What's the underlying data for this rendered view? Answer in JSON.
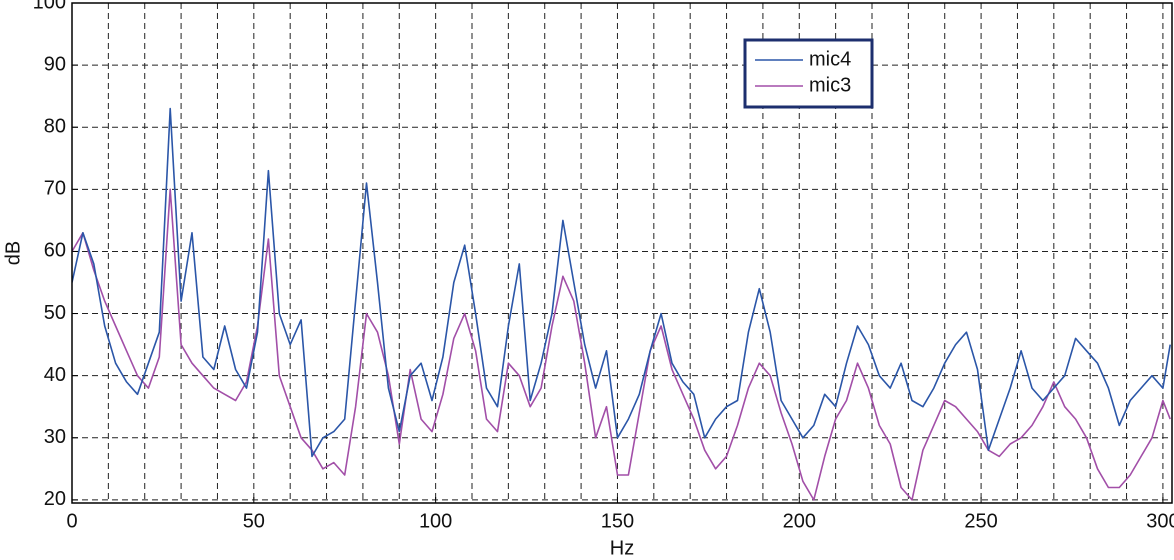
{
  "chart_data": {
    "type": "line",
    "xlabel": "Hz",
    "ylabel": "dB",
    "x": [
      0,
      3,
      6,
      9,
      12,
      15,
      18,
      21,
      24,
      27,
      30,
      33,
      36,
      39,
      42,
      45,
      48,
      51,
      54,
      57,
      60,
      63,
      66,
      69,
      72,
      75,
      78,
      81,
      84,
      87,
      90,
      93,
      96,
      99,
      102,
      105,
      108,
      111,
      114,
      117,
      120,
      123,
      126,
      129,
      132,
      135,
      138,
      141,
      144,
      147,
      150,
      153,
      156,
      159,
      162,
      165,
      168,
      171,
      174,
      177,
      180,
      183,
      186,
      189,
      192,
      195,
      198,
      201,
      204,
      207,
      210,
      213,
      216,
      219,
      222,
      225,
      228,
      231,
      234,
      237,
      240,
      243,
      246,
      249,
      252,
      255,
      258,
      261,
      264,
      267,
      270,
      273,
      276,
      279,
      282,
      285,
      288,
      291,
      294,
      297,
      300,
      302
    ],
    "series": [
      {
        "name": "mic4",
        "color": "#2b56a8",
        "values": [
          55,
          63,
          58,
          48,
          42,
          39,
          37,
          42,
          47,
          83,
          52,
          63,
          43,
          41,
          48,
          41,
          38,
          47,
          73,
          50,
          45,
          49,
          27,
          30,
          31,
          33,
          52,
          71,
          55,
          38,
          31,
          40,
          42,
          36,
          43,
          55,
          61,
          50,
          38,
          35,
          48,
          58,
          36,
          42,
          50,
          65,
          55,
          45,
          38,
          44,
          30,
          33,
          37,
          44,
          50,
          42,
          39,
          37,
          30,
          33,
          35,
          36,
          47,
          54,
          47,
          36,
          33,
          30,
          32,
          37,
          35,
          42,
          48,
          45,
          40,
          38,
          42,
          36,
          35,
          38,
          42,
          45,
          47,
          41,
          28,
          33,
          38,
          44,
          38,
          36,
          38,
          40,
          46,
          44,
          42,
          38,
          32,
          36,
          38,
          40,
          38,
          45
        ]
      },
      {
        "name": "mic3",
        "color": "#a24fa8",
        "values": [
          60,
          63,
          57,
          52,
          48,
          44,
          40,
          38,
          43,
          70,
          45,
          42,
          40,
          38,
          37,
          36,
          39,
          48,
          62,
          40,
          35,
          30,
          28,
          25,
          26,
          24,
          35,
          50,
          47,
          40,
          29,
          41,
          33,
          31,
          37,
          46,
          50,
          44,
          33,
          31,
          42,
          40,
          35,
          38,
          48,
          56,
          52,
          42,
          30,
          35,
          24,
          24,
          34,
          44,
          48,
          41,
          37,
          33,
          28,
          25,
          27,
          32,
          38,
          42,
          40,
          34,
          29,
          23,
          20,
          27,
          33,
          36,
          42,
          38,
          32,
          29,
          22,
          20,
          28,
          32,
          36,
          35,
          33,
          31,
          28,
          27,
          29,
          30,
          32,
          35,
          39,
          35,
          33,
          30,
          25,
          22,
          22,
          24,
          27,
          30,
          36,
          33
        ]
      }
    ],
    "xlim": [
      0,
      302.5
    ],
    "ylim": [
      19.5,
      100
    ],
    "xticks": [
      0,
      50,
      100,
      150,
      200,
      250,
      300
    ],
    "yticks": [
      20,
      30,
      40,
      50,
      60,
      70,
      80,
      90,
      100
    ],
    "xgrid": [
      0,
      10,
      20,
      30,
      40,
      50,
      60,
      70,
      80,
      90,
      100,
      110,
      120,
      130,
      140,
      150,
      160,
      170,
      180,
      190,
      200,
      210,
      220,
      230,
      240,
      250,
      260,
      270,
      280,
      290,
      300
    ],
    "grid": true
  }
}
